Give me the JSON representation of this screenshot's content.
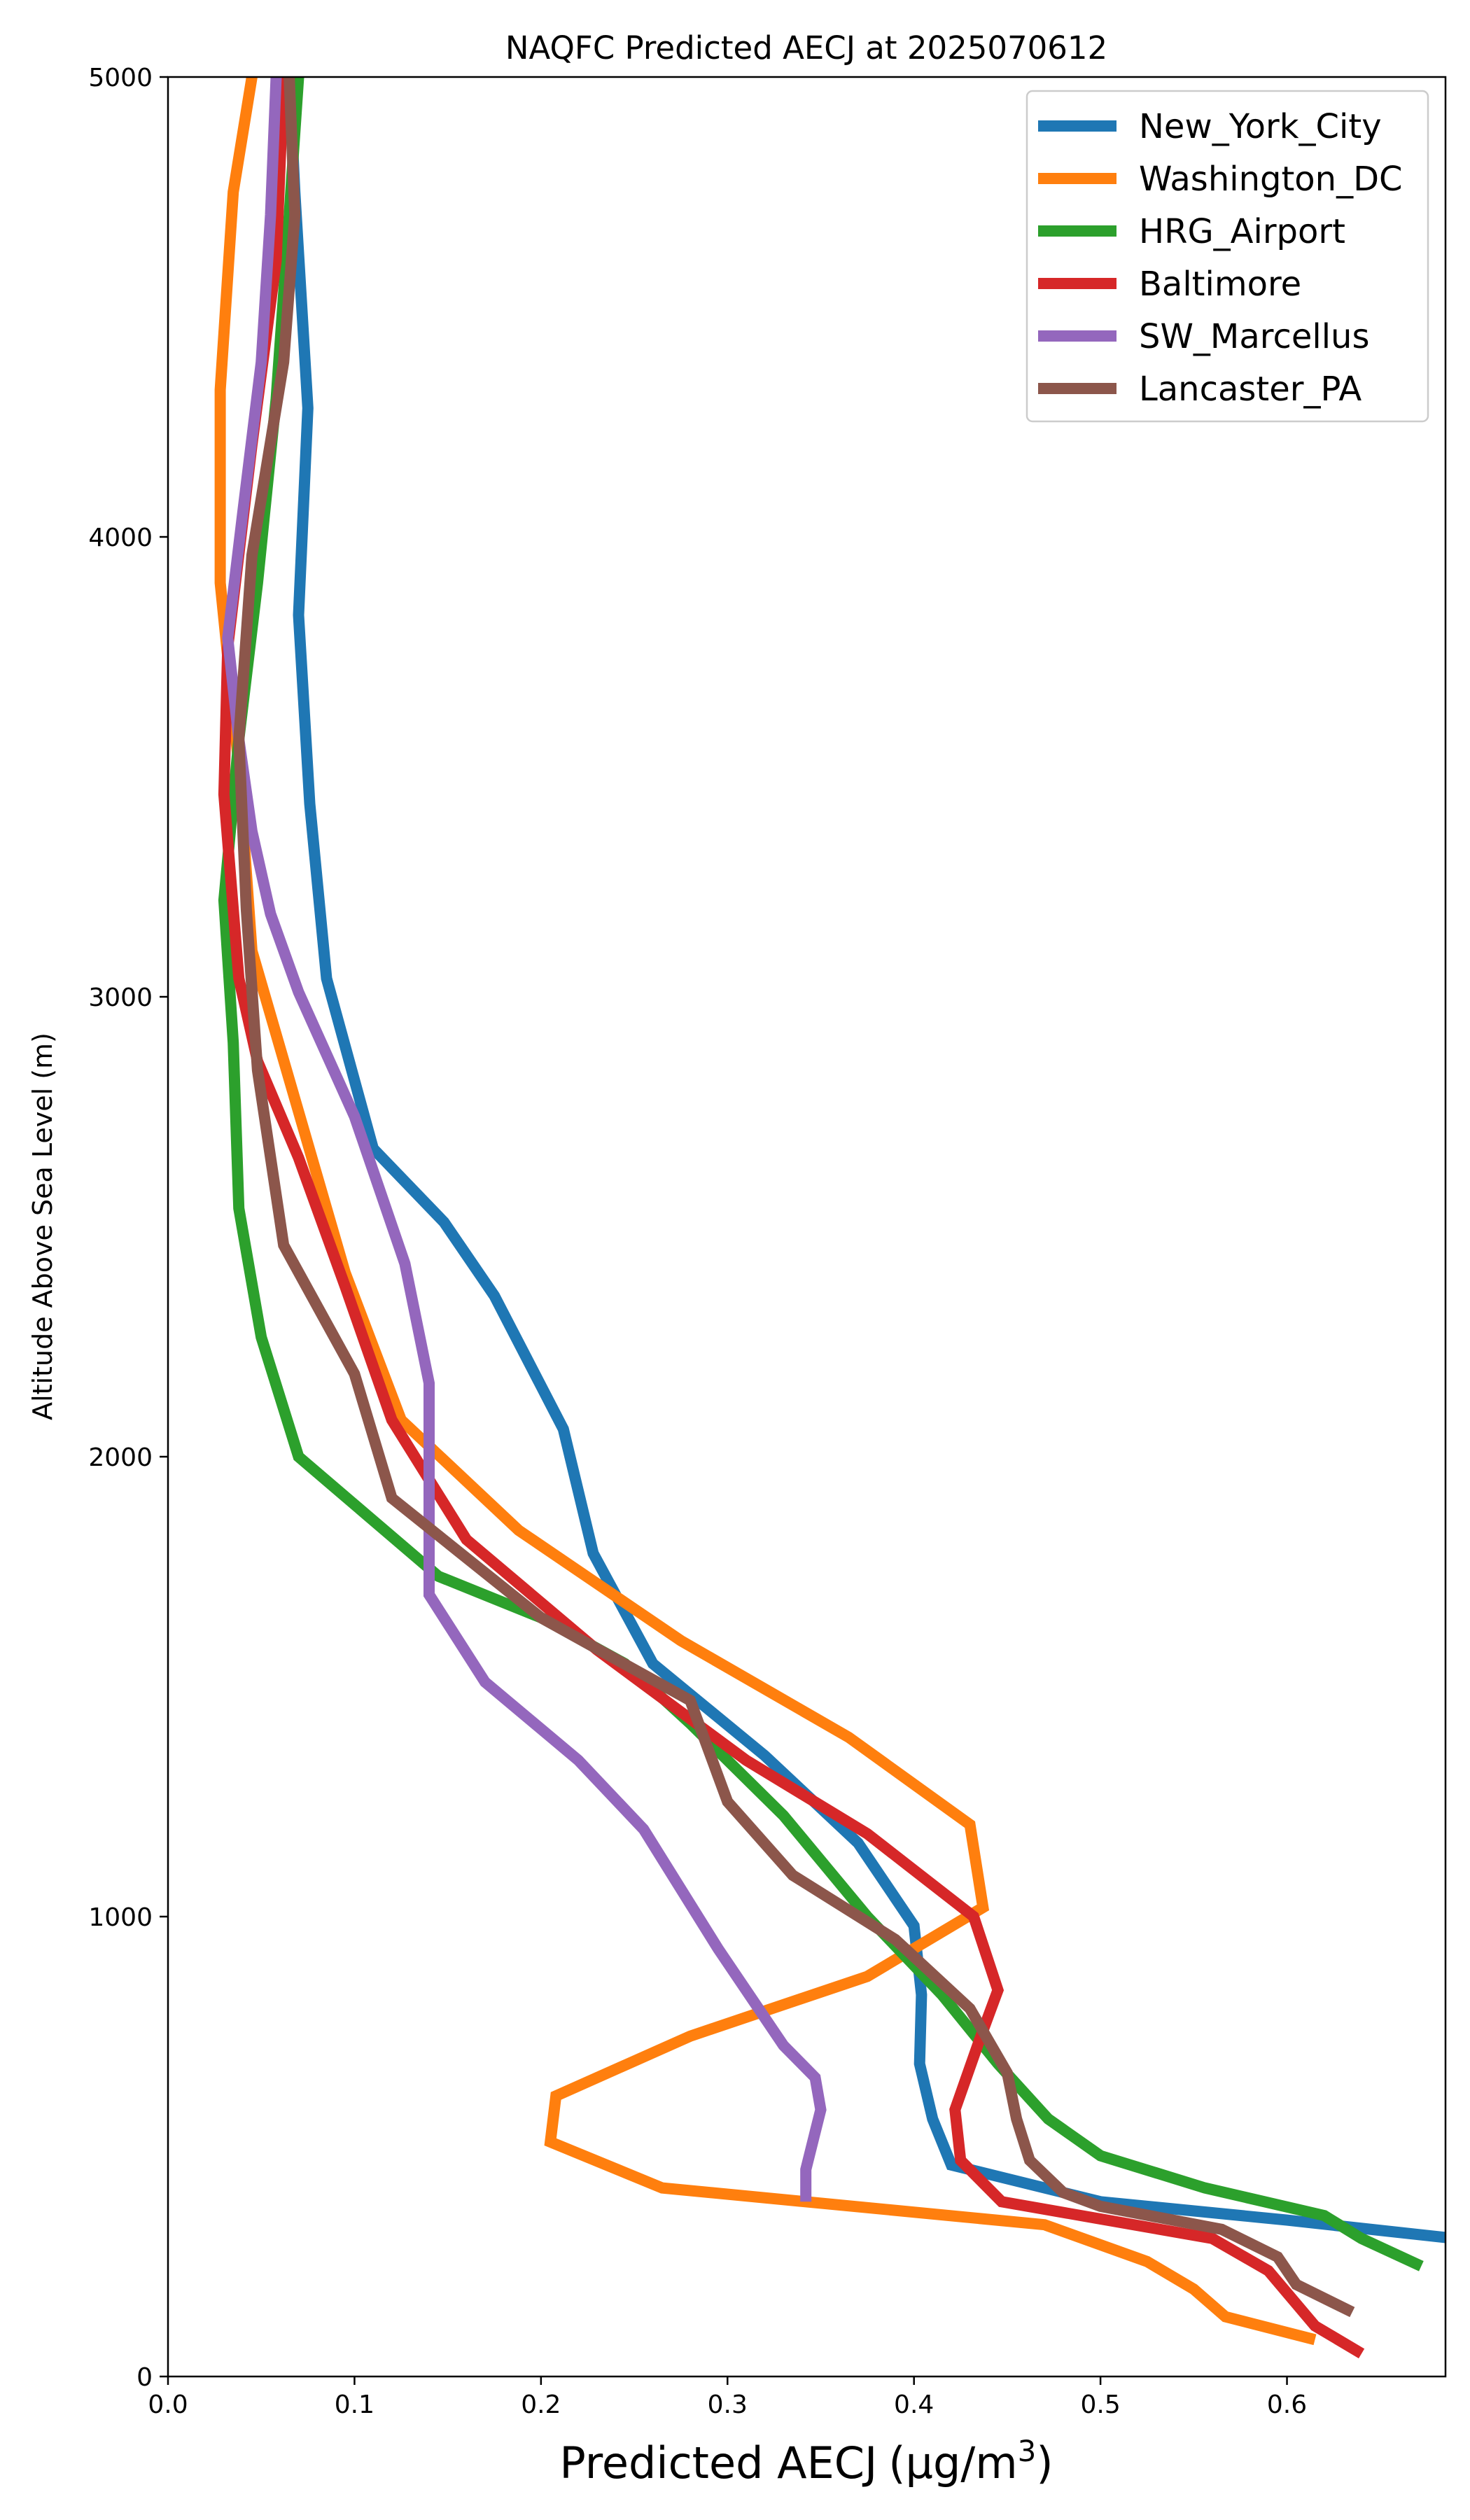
{
  "chart_data": {
    "type": "line",
    "title": "NAQFC Predicted AECJ at 2025070612",
    "xlabel": "Predicted AECJ",
    "xlabel_unit_base": "(μg/m",
    "xlabel_unit_exp": "3",
    "xlabel_unit_close": ")",
    "ylabel": "Altitude Above Sea Level (m)",
    "xlim": [
      0.0,
      0.685
    ],
    "ylim": [
      0,
      5000
    ],
    "x_ticks": [
      "0.0",
      "0.1",
      "0.2",
      "0.3",
      "0.4",
      "0.5",
      "0.6"
    ],
    "y_ticks": [
      "0",
      "1000",
      "2000",
      "3000",
      "4000",
      "5000"
    ],
    "grid": false,
    "legend_position": "top-right",
    "series": [
      {
        "name": "New_York_City",
        "color": "#1f77b4",
        "points": [
          [
            0.69,
            300
          ],
          [
            0.6,
            340
          ],
          [
            0.5,
            380
          ],
          [
            0.42,
            460
          ],
          [
            0.41,
            560
          ],
          [
            0.403,
            680
          ],
          [
            0.404,
            830
          ],
          [
            0.4,
            980
          ],
          [
            0.37,
            1160
          ],
          [
            0.32,
            1350
          ],
          [
            0.26,
            1550
          ],
          [
            0.228,
            1790
          ],
          [
            0.212,
            2060
          ],
          [
            0.175,
            2350
          ],
          [
            0.148,
            2510
          ],
          [
            0.11,
            2670
          ],
          [
            0.085,
            3040
          ],
          [
            0.076,
            3420
          ],
          [
            0.07,
            3830
          ],
          [
            0.075,
            4280
          ],
          [
            0.068,
            4750
          ],
          [
            0.065,
            5000
          ]
        ]
      },
      {
        "name": "Washington_DC",
        "color": "#ff7f0e",
        "points": [
          [
            0.615,
            80
          ],
          [
            0.567,
            130
          ],
          [
            0.55,
            190
          ],
          [
            0.525,
            250
          ],
          [
            0.47,
            330
          ],
          [
            0.265,
            410
          ],
          [
            0.205,
            510
          ],
          [
            0.208,
            610
          ],
          [
            0.28,
            740
          ],
          [
            0.375,
            870
          ],
          [
            0.437,
            1020
          ],
          [
            0.43,
            1200
          ],
          [
            0.365,
            1390
          ],
          [
            0.275,
            1600
          ],
          [
            0.188,
            1840
          ],
          [
            0.125,
            2080
          ],
          [
            0.095,
            2400
          ],
          [
            0.07,
            2750
          ],
          [
            0.045,
            3100
          ],
          [
            0.038,
            3500
          ],
          [
            0.028,
            3900
          ],
          [
            0.028,
            4320
          ],
          [
            0.035,
            4750
          ],
          [
            0.045,
            5000
          ]
        ]
      },
      {
        "name": "HRG_Airport",
        "color": "#2ca02c",
        "points": [
          [
            0.672,
            240
          ],
          [
            0.64,
            300
          ],
          [
            0.62,
            350
          ],
          [
            0.556,
            410
          ],
          [
            0.5,
            480
          ],
          [
            0.472,
            560
          ],
          [
            0.445,
            680
          ],
          [
            0.415,
            830
          ],
          [
            0.375,
            1000
          ],
          [
            0.33,
            1220
          ],
          [
            0.28,
            1420
          ],
          [
            0.245,
            1550
          ],
          [
            0.2,
            1650
          ],
          [
            0.145,
            1740
          ],
          [
            0.07,
            2000
          ],
          [
            0.05,
            2260
          ],
          [
            0.038,
            2540
          ],
          [
            0.035,
            2900
          ],
          [
            0.03,
            3210
          ],
          [
            0.038,
            3560
          ],
          [
            0.048,
            3900
          ],
          [
            0.058,
            4300
          ],
          [
            0.065,
            4700
          ],
          [
            0.07,
            5000
          ]
        ]
      },
      {
        "name": "Baltimore",
        "color": "#d62728",
        "points": [
          [
            0.64,
            50
          ],
          [
            0.615,
            110
          ],
          [
            0.59,
            230
          ],
          [
            0.56,
            300
          ],
          [
            0.447,
            380
          ],
          [
            0.425,
            470
          ],
          [
            0.422,
            580
          ],
          [
            0.435,
            730
          ],
          [
            0.445,
            840
          ],
          [
            0.432,
            1000
          ],
          [
            0.375,
            1180
          ],
          [
            0.31,
            1340
          ],
          [
            0.23,
            1580
          ],
          [
            0.16,
            1820
          ],
          [
            0.12,
            2080
          ],
          [
            0.095,
            2370
          ],
          [
            0.07,
            2650
          ],
          [
            0.048,
            2860
          ],
          [
            0.038,
            3040
          ],
          [
            0.03,
            3440
          ],
          [
            0.032,
            3760
          ],
          [
            0.045,
            4200
          ],
          [
            0.058,
            4600
          ],
          [
            0.062,
            5000
          ]
        ]
      },
      {
        "name": "SW_Marcellus",
        "color": "#9467bd",
        "points": [
          [
            0.342,
            380
          ],
          [
            0.342,
            450
          ],
          [
            0.35,
            580
          ],
          [
            0.347,
            650
          ],
          [
            0.33,
            720
          ],
          [
            0.295,
            930
          ],
          [
            0.255,
            1190
          ],
          [
            0.22,
            1340
          ],
          [
            0.17,
            1510
          ],
          [
            0.14,
            1700
          ],
          [
            0.14,
            2160
          ],
          [
            0.127,
            2420
          ],
          [
            0.1,
            2740
          ],
          [
            0.07,
            3010
          ],
          [
            0.055,
            3180
          ],
          [
            0.045,
            3360
          ],
          [
            0.038,
            3560
          ],
          [
            0.032,
            3780
          ],
          [
            0.04,
            4050
          ],
          [
            0.05,
            4380
          ],
          [
            0.055,
            4700
          ],
          [
            0.058,
            5000
          ]
        ]
      },
      {
        "name": "Lancaster_PA",
        "color": "#8c564b",
        "points": [
          [
            0.635,
            140
          ],
          [
            0.605,
            200
          ],
          [
            0.595,
            260
          ],
          [
            0.565,
            320
          ],
          [
            0.5,
            370
          ],
          [
            0.48,
            400
          ],
          [
            0.462,
            470
          ],
          [
            0.455,
            560
          ],
          [
            0.45,
            660
          ],
          [
            0.43,
            800
          ],
          [
            0.39,
            950
          ],
          [
            0.335,
            1090
          ],
          [
            0.3,
            1250
          ],
          [
            0.28,
            1470
          ],
          [
            0.2,
            1650
          ],
          [
            0.12,
            1910
          ],
          [
            0.1,
            2180
          ],
          [
            0.062,
            2460
          ],
          [
            0.048,
            2840
          ],
          [
            0.042,
            3190
          ],
          [
            0.038,
            3560
          ],
          [
            0.045,
            3960
          ],
          [
            0.062,
            4380
          ],
          [
            0.068,
            4700
          ],
          [
            0.065,
            5000
          ]
        ]
      }
    ]
  }
}
